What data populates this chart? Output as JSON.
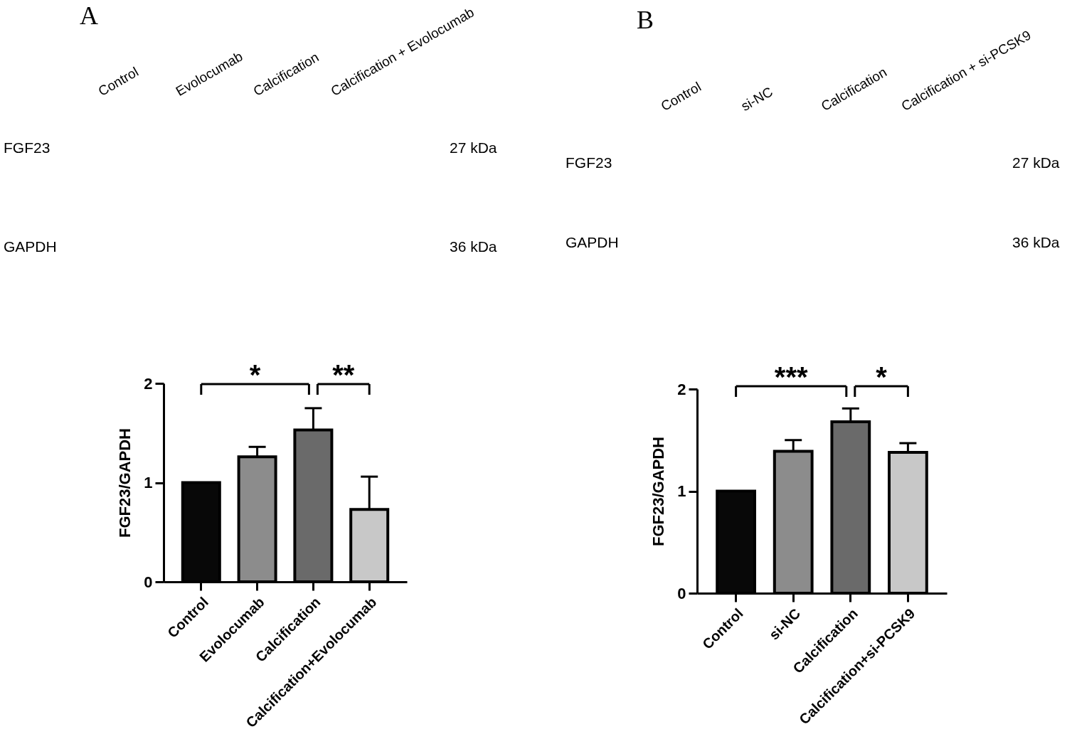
{
  "chart_data": [
    {
      "type": "other",
      "title": "A",
      "categories": [
        "Control",
        "Evolocumab",
        "Calcification",
        "Calcification + Evolocumab"
      ],
      "y_categories": [
        "FGF23",
        "GAPDH"
      ],
      "y2_categories": [
        "27 kDa",
        "36 kDa"
      ]
    },
    {
      "type": "bar",
      "ylabel": "FGF23/GAPDH",
      "categories": [
        "Control",
        "Evolocumab",
        "Calcification",
        "Calcification+Evolocumab"
      ],
      "values": [
        1,
        1.26,
        1.53,
        0.73
      ],
      "colors": [
        "#080808",
        "#8c8c8c",
        "#6a6a6a",
        "#c8c8c8"
      ],
      "errors": [
        null,
        [
          1.26,
          1.36
        ],
        [
          1.53,
          1.75
        ],
        [
          0.73,
          1.06
        ]
      ],
      "ylim": [
        0,
        2
      ],
      "yticks": [
        0,
        1,
        2
      ],
      "annotations": [
        "*",
        "**"
      ]
    },
    {
      "type": "other",
      "title": "B",
      "categories": [
        "Control",
        "si-NC",
        "Calcification",
        "Calcification + si-PCSK9"
      ],
      "y_categories": [
        "FGF23",
        "GAPDH"
      ],
      "y2_categories": [
        "27 kDa",
        "36 kDa"
      ]
    },
    {
      "type": "bar",
      "ylabel": "FGF23/GAPDH",
      "categories": [
        "Control",
        "si-NC",
        "Calcification",
        "Calcification+si-PCSK9"
      ],
      "values": [
        1,
        1.39,
        1.68,
        1.38
      ],
      "colors": [
        "#080808",
        "#8c8c8c",
        "#6a6a6a",
        "#c8c8c8"
      ],
      "errors": [
        null,
        [
          1.39,
          1.5
        ],
        [
          1.68,
          1.81
        ],
        [
          1.38,
          1.47
        ]
      ],
      "ylim": [
        0,
        2
      ],
      "yticks": [
        0,
        1,
        2
      ],
      "annotations": [
        "***",
        "*"
      ]
    }
  ]
}
